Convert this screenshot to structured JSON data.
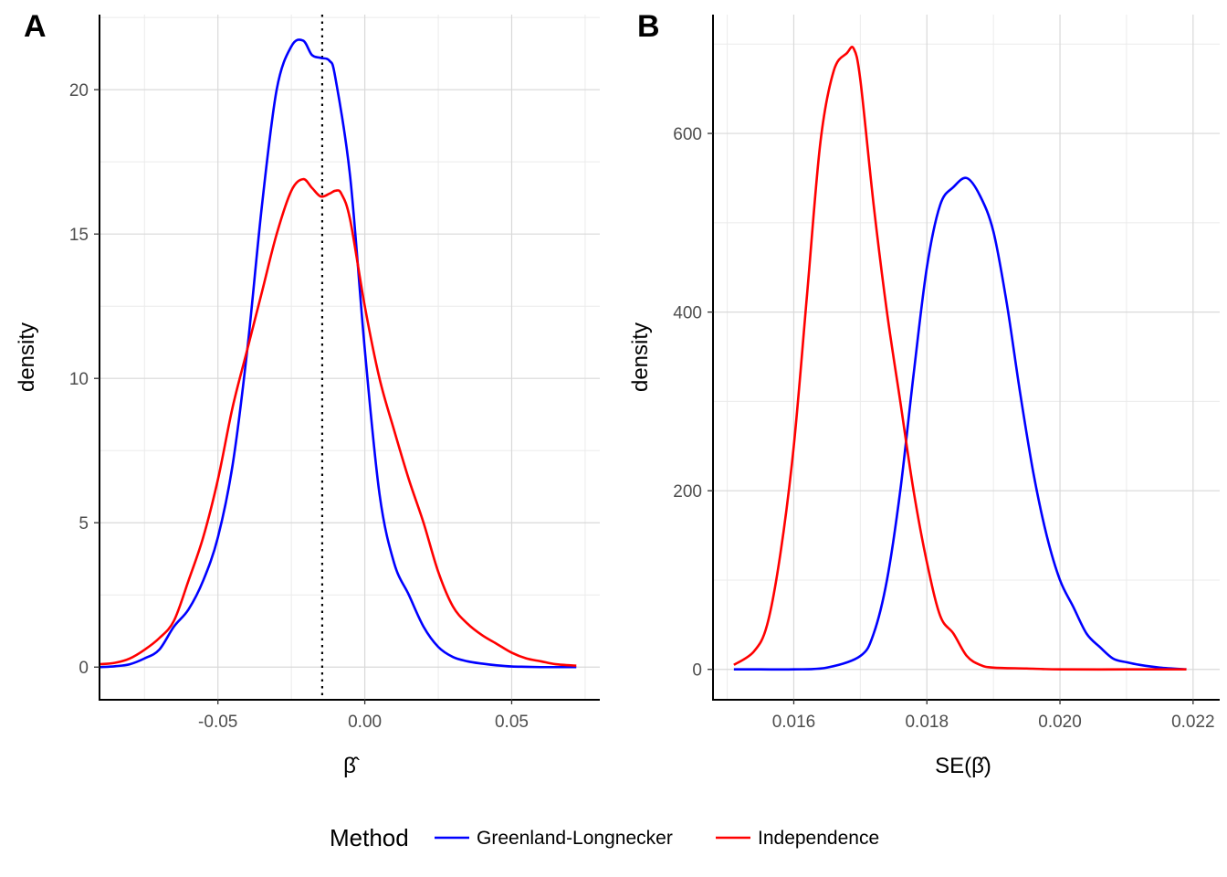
{
  "legend": {
    "title": "Method",
    "items": [
      {
        "label": "Greenland-Longnecker",
        "color": "#0000FF"
      },
      {
        "label": "Independence",
        "color": "#FF0000"
      }
    ]
  },
  "chart_data": [
    {
      "type": "line",
      "panel_label": "A",
      "xlabel": "β̂",
      "ylabel": "density",
      "xlim": [
        -0.09,
        0.08
      ],
      "ylim": [
        -1.1,
        22.6
      ],
      "x_ticks": [
        -0.05,
        0.0,
        0.05
      ],
      "x_tick_labels": [
        "-0.05",
        "0.00",
        "0.05"
      ],
      "y_ticks": [
        0,
        5,
        10,
        15,
        20
      ],
      "y_tick_labels": [
        "0",
        "5",
        "10",
        "15",
        "20"
      ],
      "grid": true,
      "vline": {
        "x": -0.0145,
        "style": "dotted"
      },
      "series": [
        {
          "name": "Greenland-Longnecker",
          "color": "#0000FF",
          "x": [
            -0.09,
            -0.085,
            -0.08,
            -0.075,
            -0.07,
            -0.065,
            -0.06,
            -0.055,
            -0.05,
            -0.045,
            -0.04,
            -0.035,
            -0.03,
            -0.025,
            -0.021,
            -0.018,
            -0.015,
            -0.012,
            -0.01,
            -0.005,
            0.0,
            0.005,
            0.01,
            0.015,
            0.02,
            0.025,
            0.03,
            0.035,
            0.04,
            0.045,
            0.05,
            0.055,
            0.06,
            0.065,
            0.072
          ],
          "y": [
            0.0,
            0.03,
            0.1,
            0.3,
            0.6,
            1.4,
            2.0,
            3.0,
            4.5,
            7.0,
            11.0,
            16.0,
            20.0,
            21.5,
            21.7,
            21.2,
            21.1,
            21.0,
            20.4,
            17.0,
            11.0,
            6.0,
            3.6,
            2.5,
            1.4,
            0.7,
            0.35,
            0.2,
            0.12,
            0.06,
            0.02,
            0.01,
            0.0,
            0.0,
            0.0
          ]
        },
        {
          "name": "Independence",
          "color": "#FF0000",
          "x": [
            -0.09,
            -0.085,
            -0.08,
            -0.075,
            -0.07,
            -0.065,
            -0.06,
            -0.055,
            -0.05,
            -0.045,
            -0.04,
            -0.035,
            -0.03,
            -0.025,
            -0.021,
            -0.018,
            -0.015,
            -0.012,
            -0.01,
            -0.008,
            -0.005,
            0.0,
            0.005,
            0.01,
            0.015,
            0.02,
            0.025,
            0.03,
            0.035,
            0.04,
            0.045,
            0.05,
            0.055,
            0.06,
            0.065,
            0.072
          ],
          "y": [
            0.1,
            0.15,
            0.3,
            0.6,
            1.0,
            1.6,
            3.0,
            4.5,
            6.5,
            9.0,
            11.0,
            13.0,
            15.0,
            16.5,
            16.9,
            16.6,
            16.3,
            16.4,
            16.5,
            16.4,
            15.5,
            12.5,
            10.0,
            8.2,
            6.5,
            5.0,
            3.3,
            2.1,
            1.5,
            1.1,
            0.8,
            0.5,
            0.3,
            0.2,
            0.1,
            0.05
          ]
        }
      ]
    },
    {
      "type": "line",
      "panel_label": "B",
      "xlabel": "SE(β̂)",
      "ylabel": "density",
      "xlim": [
        0.0148,
        0.0224
      ],
      "ylim": [
        -33,
        733
      ],
      "x_ticks": [
        0.016,
        0.018,
        0.02,
        0.022
      ],
      "x_tick_labels": [
        "0.016",
        "0.018",
        "0.020",
        "0.022"
      ],
      "y_ticks": [
        0,
        200,
        400,
        600
      ],
      "y_tick_labels": [
        "0",
        "200",
        "400",
        "600"
      ],
      "grid": true,
      "series": [
        {
          "name": "Greenland-Longnecker",
          "color": "#0000FF",
          "x": [
            0.0151,
            0.0155,
            0.016,
            0.0165,
            0.017,
            0.0172,
            0.0174,
            0.0176,
            0.0178,
            0.018,
            0.0182,
            0.0184,
            0.0186,
            0.0188,
            0.019,
            0.0192,
            0.0194,
            0.0196,
            0.0198,
            0.02,
            0.0202,
            0.0204,
            0.0206,
            0.0208,
            0.021,
            0.0212,
            0.0215,
            0.0219
          ],
          "y": [
            0,
            0,
            0,
            2,
            15,
            40,
            100,
            200,
            330,
            450,
            520,
            540,
            550,
            530,
            490,
            410,
            310,
            220,
            150,
            100,
            70,
            40,
            25,
            12,
            8,
            5,
            2,
            0
          ]
        },
        {
          "name": "Independence",
          "color": "#FF0000",
          "x": [
            0.0151,
            0.0154,
            0.0156,
            0.0158,
            0.016,
            0.0162,
            0.0164,
            0.0166,
            0.0168,
            0.0169,
            0.017,
            0.0172,
            0.0174,
            0.0176,
            0.0178,
            0.018,
            0.0182,
            0.0184,
            0.0186,
            0.0188,
            0.019,
            0.0195,
            0.02,
            0.021,
            0.0219
          ],
          "y": [
            5,
            20,
            50,
            130,
            250,
            420,
            590,
            670,
            690,
            695,
            660,
            520,
            400,
            300,
            200,
            120,
            60,
            40,
            15,
            5,
            2,
            1,
            0,
            0,
            0
          ]
        }
      ]
    }
  ]
}
